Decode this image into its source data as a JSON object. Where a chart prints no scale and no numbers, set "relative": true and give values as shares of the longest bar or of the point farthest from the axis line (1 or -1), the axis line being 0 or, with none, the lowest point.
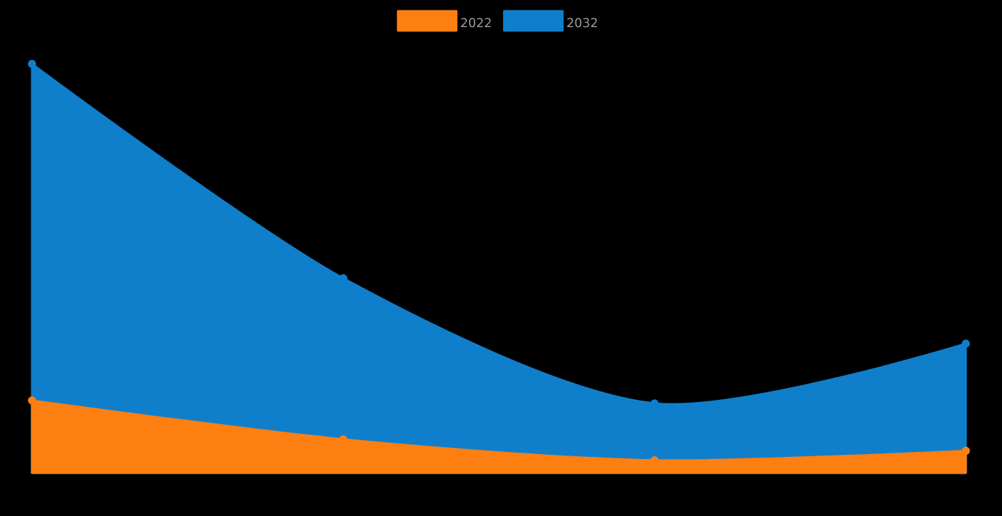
{
  "chart_data": {
    "type": "area",
    "relative": true,
    "categories": [
      null,
      null,
      null,
      null
    ],
    "legend": "top",
    "marker": "circle",
    "series": [
      {
        "name": "2022",
        "color": "#fd7f12",
        "values": [
          0.177,
          0.082,
          0.031,
          0.054
        ]
      },
      {
        "name": "2032",
        "color": "#0f7fcc",
        "values": [
          1,
          0.476,
          0.17,
          0.316
        ]
      }
    ]
  }
}
